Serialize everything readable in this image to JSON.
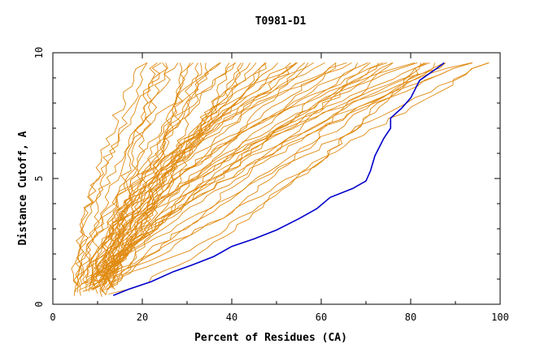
{
  "chart_data": {
    "type": "line",
    "title": "T0981-D1",
    "xlabel": "Percent of Residues (CA)",
    "ylabel": "Distance Cutoff, A",
    "xlim": [
      0,
      100
    ],
    "ylim": [
      0,
      10
    ],
    "x_ticks": [
      0,
      20,
      40,
      60,
      80,
      100
    ],
    "y_ticks": [
      0,
      5,
      10
    ],
    "grid": false,
    "legend": "none",
    "background_color": "#e08a10",
    "highlight_color": "#0000cc",
    "highlight": {
      "points": [
        [
          13.5,
          0.35
        ],
        [
          17,
          0.6
        ],
        [
          22,
          0.9
        ],
        [
          27,
          1.3
        ],
        [
          31,
          1.55
        ],
        [
          36,
          1.9
        ],
        [
          40,
          2.3
        ],
        [
          45,
          2.6
        ],
        [
          50,
          2.95
        ],
        [
          55,
          3.4
        ],
        [
          59,
          3.8
        ],
        [
          62,
          4.25
        ],
        [
          67,
          4.6
        ],
        [
          70,
          4.9
        ],
        [
          71,
          5.3
        ],
        [
          72,
          5.9
        ],
        [
          74,
          6.6
        ],
        [
          75.5,
          7.0
        ],
        [
          75.5,
          7.4
        ],
        [
          78,
          7.8
        ],
        [
          80,
          8.2
        ],
        [
          82,
          8.9
        ],
        [
          86,
          9.4
        ],
        [
          87.5,
          9.6
        ]
      ]
    },
    "background_series_count": 60
  }
}
